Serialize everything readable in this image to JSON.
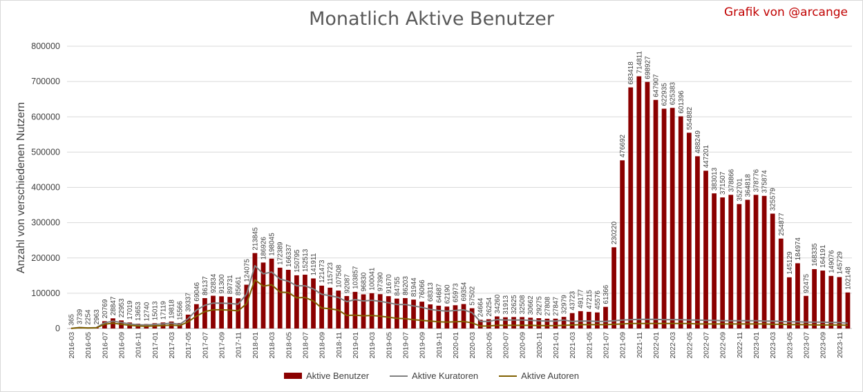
{
  "chart_data": {
    "type": "bar",
    "title": "Monatlich Aktive Benutzer",
    "credit": "Grafik von @arcange",
    "ylabel": "Anzahl von verschiedenen Nutzern",
    "xlabel": "",
    "ylim": [
      0,
      800000
    ],
    "yticks": [
      "0",
      "100000",
      "200000",
      "300000",
      "400000",
      "500000",
      "600000",
      "700000",
      "800000"
    ],
    "grid": true,
    "legend_position": "bottom",
    "colors": {
      "bars": "#8b0000",
      "curators": "#7f7f7f",
      "authors": "#806000"
    },
    "categories": [
      "2016-03",
      "2016-04",
      "2016-05",
      "2016-06",
      "2016-07",
      "2016-08",
      "2016-09",
      "2016-10",
      "2016-11",
      "2016-12",
      "2017-01",
      "2017-02",
      "2017-03",
      "2017-04",
      "2017-05",
      "2017-06",
      "2017-07",
      "2017-08",
      "2017-09",
      "2017-10",
      "2017-11",
      "2017-12",
      "2018-01",
      "2018-02",
      "2018-03",
      "2018-04",
      "2018-05",
      "2018-06",
      "2018-07",
      "2018-08",
      "2018-09",
      "2018-10",
      "2018-11",
      "2018-12",
      "2019-01",
      "2019-02",
      "2019-03",
      "2019-04",
      "2019-05",
      "2019-06",
      "2019-07",
      "2019-08",
      "2019-09",
      "2019-10",
      "2019-11",
      "2019-12",
      "2020-01",
      "2020-02",
      "2020-03",
      "2020-04",
      "2020-05",
      "2020-06",
      "2020-07",
      "2020-08",
      "2020-09",
      "2020-10",
      "2020-11",
      "2020-12",
      "2021-01",
      "2021-02",
      "2021-03",
      "2021-04",
      "2021-05",
      "2021-06",
      "2021-07",
      "2021-08",
      "2021-09",
      "2021-10",
      "2021-11",
      "2021-12",
      "2022-01",
      "2022-02",
      "2022-03",
      "2022-04",
      "2022-05",
      "2022-06",
      "2022-07",
      "2022-08",
      "2022-09",
      "2022-10",
      "2022-11",
      "2022-12",
      "2023-01",
      "2023-02",
      "2023-03",
      "2023-04",
      "2023-05",
      "2023-06",
      "2023-07",
      "2023-08",
      "2023-09",
      "2023-10",
      "2023-11",
      "2023-12"
    ],
    "series": [
      {
        "name": "Aktive Benutzer",
        "kind": "bar",
        "values": [
          365,
          3739,
          2254,
          2963,
          20769,
          28847,
          22953,
          17019,
          13653,
          12740,
          15013,
          17119,
          19818,
          15566,
          39337,
          69046,
          86137,
          92834,
          91300,
          89731,
          85661,
          124075,
          213845,
          186926,
          198045,
          172389,
          166337,
          150795,
          152513,
          141911,
          121473,
          115723,
          107508,
          92087,
          103857,
          96830,
          100041,
          97390,
          91670,
          84755,
          86203,
          81944,
          76066,
          68313,
          64687,
          62190,
          65973,
          69354,
          57502,
          24664,
          26254,
          34260,
          31913,
          32625,
          32508,
          30662,
          29275,
          27808,
          27847,
          32979,
          43723,
          49177,
          47215,
          45576,
          61366,
          230220,
          476692,
          683418,
          714811,
          698927,
          647907,
          622935,
          625383,
          601396,
          554882,
          488249,
          447201,
          383013,
          371507,
          378866,
          352701,
          364818,
          378776,
          375874,
          325579,
          254877,
          145129,
          184974,
          92475,
          168335,
          164191,
          149076,
          145729,
          102148
        ]
      },
      {
        "name": "Aktive Kuratoren",
        "kind": "line",
        "values": [
          300,
          3000,
          1800,
          2300,
          16000,
          21000,
          17000,
          13000,
          10500,
          10000,
          11500,
          13000,
          15000,
          12000,
          28000,
          52000,
          66000,
          72000,
          72000,
          71000,
          69000,
          97000,
          178000,
          155000,
          160000,
          140000,
          134000,
          121000,
          121000,
          112000,
          97000,
          93000,
          88000,
          76000,
          82000,
          78000,
          80000,
          77000,
          73000,
          68000,
          68000,
          64000,
          60000,
          54000,
          51000,
          49000,
          51000,
          53000,
          45000,
          20000,
          20000,
          25000,
          24000,
          24000,
          24000,
          23000,
          22000,
          21000,
          21000,
          24000,
          20000,
          21000,
          21000,
          20000,
          20000,
          22000,
          24000,
          25000,
          26000,
          26000,
          26000,
          25000,
          25000,
          25000,
          24000,
          24000,
          23000,
          23000,
          22000,
          22000,
          22000,
          22000,
          22000,
          21000,
          21000,
          20000,
          19000,
          19000,
          18000,
          18000,
          18000,
          17000,
          17000,
          15000
        ]
      },
      {
        "name": "Aktive Autoren",
        "kind": "line",
        "values": [
          250,
          2500,
          1500,
          2000,
          12000,
          15000,
          12000,
          9000,
          7000,
          6500,
          7500,
          8500,
          9500,
          8000,
          19000,
          35000,
          48000,
          53000,
          53000,
          52000,
          50000,
          70000,
          138000,
          120000,
          124000,
          103000,
          102000,
          87000,
          88000,
          78000,
          58000,
          56000,
          52000,
          37000,
          38000,
          36000,
          37000,
          35000,
          32000,
          29000,
          28000,
          25000,
          23000,
          21000,
          19000,
          18000,
          19000,
          20000,
          16000,
          7000,
          7000,
          9000,
          9000,
          9000,
          9000,
          9000,
          8500,
          8000,
          8000,
          9000,
          10000,
          11000,
          11000,
          11000,
          11000,
          12000,
          13000,
          14000,
          14000,
          14000,
          14000,
          14000,
          14000,
          14000,
          14000,
          13000,
          13000,
          13000,
          13000,
          13000,
          13000,
          13000,
          13000,
          13000,
          12000,
          12000,
          11000,
          11000,
          11000,
          10000,
          10000,
          10000,
          10000,
          9000
        ]
      }
    ]
  }
}
